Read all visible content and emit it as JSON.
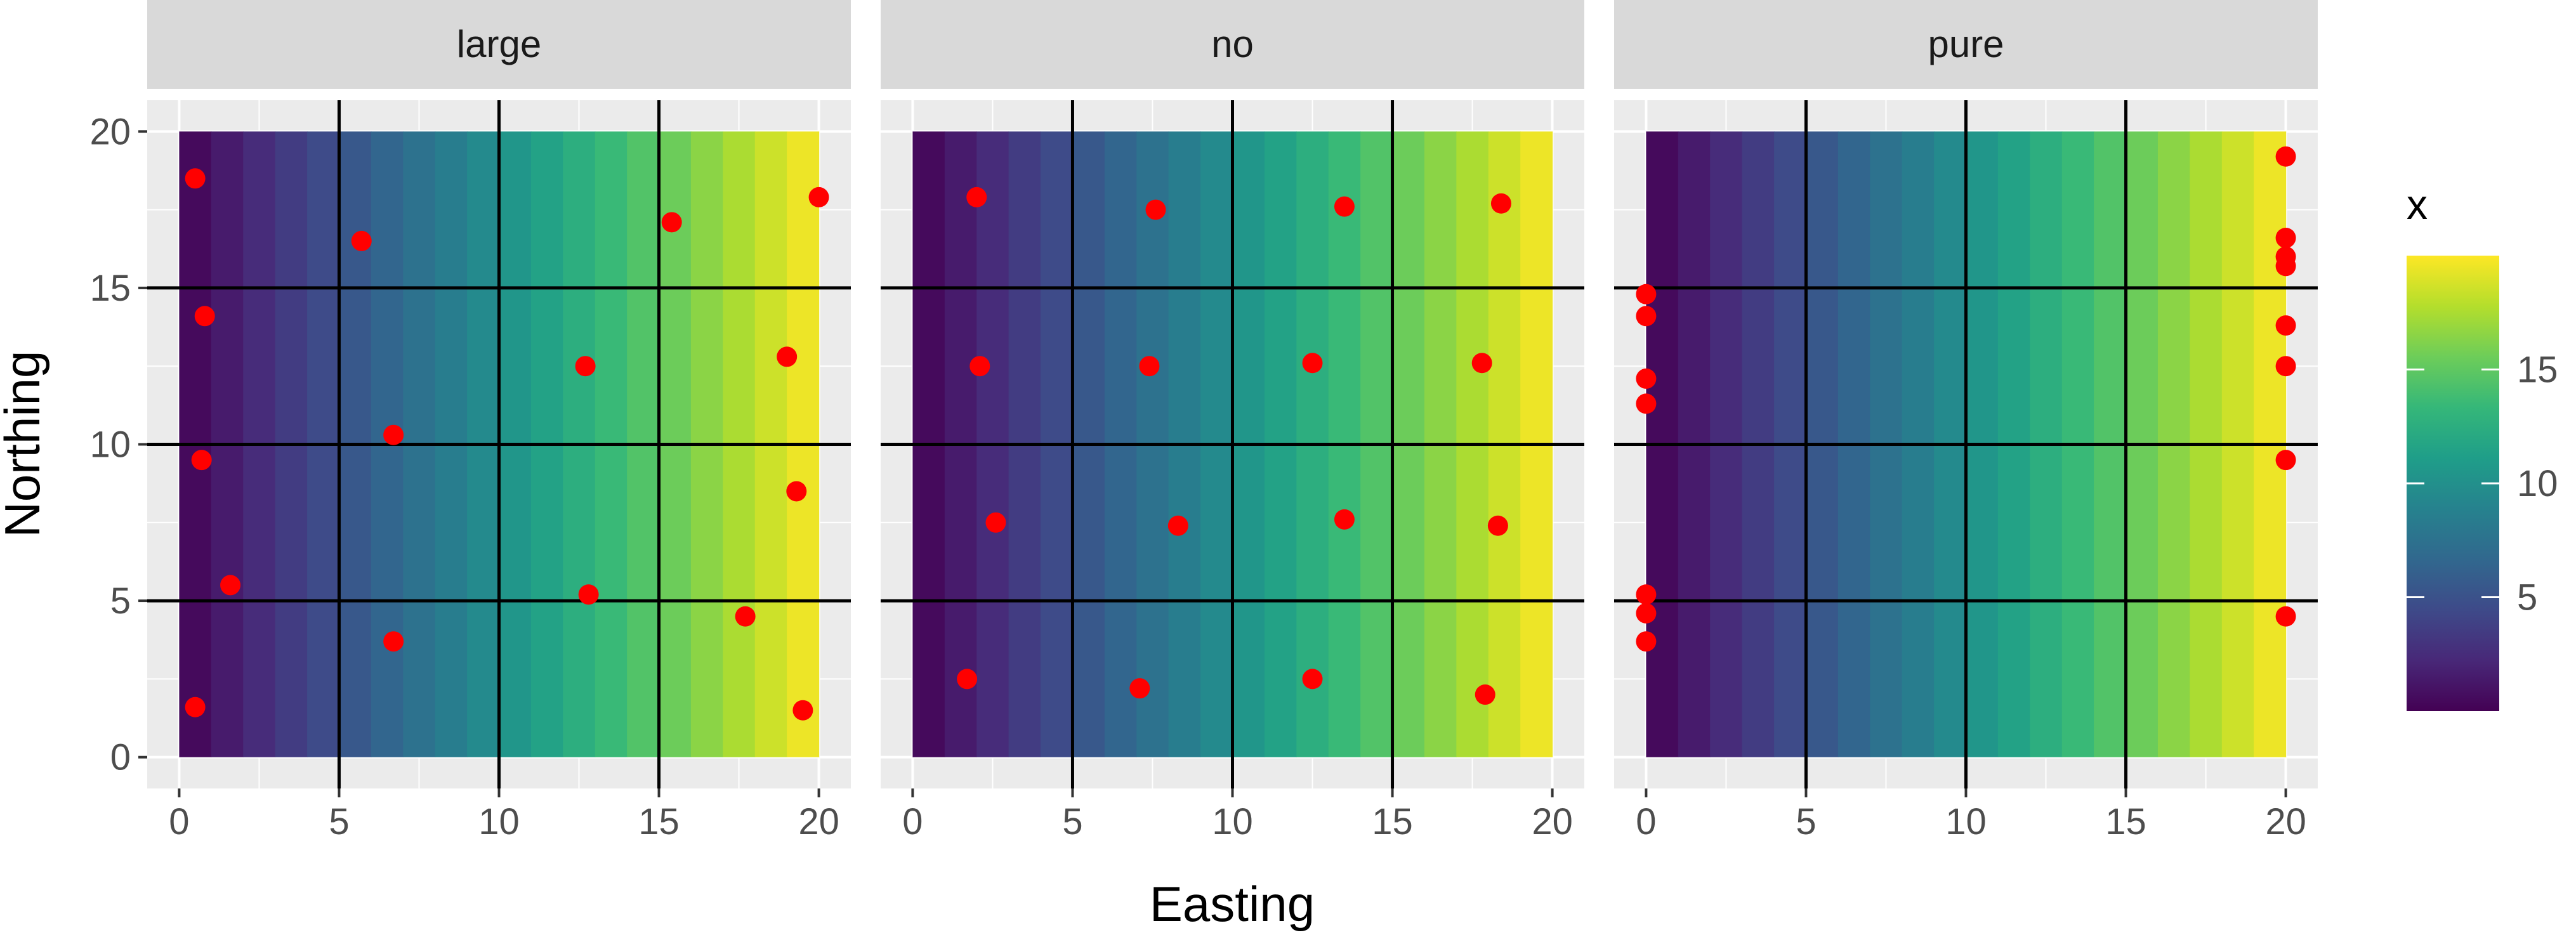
{
  "chart_data": {
    "type": "heatmap",
    "panels": [
      {
        "label": "large",
        "points": [
          [
            0.5,
            18.5
          ],
          [
            0.8,
            14.1
          ],
          [
            0.7,
            9.5
          ],
          [
            1.6,
            5.5
          ],
          [
            0.5,
            1.6
          ],
          [
            5.7,
            16.5
          ],
          [
            6.7,
            10.3
          ],
          [
            6.7,
            3.7
          ],
          [
            12.7,
            12.5
          ],
          [
            12.8,
            5.2
          ],
          [
            15.4,
            17.1
          ],
          [
            17.7,
            4.5
          ],
          [
            19.0,
            12.8
          ],
          [
            19.3,
            8.5
          ],
          [
            20.0,
            17.9
          ],
          [
            19.5,
            1.5
          ]
        ]
      },
      {
        "label": "no",
        "points": [
          [
            2.0,
            17.9
          ],
          [
            2.1,
            12.5
          ],
          [
            2.6,
            7.5
          ],
          [
            1.7,
            2.5
          ],
          [
            7.6,
            17.5
          ],
          [
            7.4,
            12.5
          ],
          [
            8.3,
            7.4
          ],
          [
            7.1,
            2.2
          ],
          [
            13.5,
            17.6
          ],
          [
            12.5,
            12.6
          ],
          [
            13.5,
            7.6
          ],
          [
            12.5,
            2.5
          ],
          [
            18.4,
            17.7
          ],
          [
            17.8,
            12.6
          ],
          [
            18.3,
            7.4
          ],
          [
            17.9,
            2.0
          ]
        ]
      },
      {
        "label": "pure",
        "points": [
          [
            0,
            14.8
          ],
          [
            0,
            14.1
          ],
          [
            0,
            12.1
          ],
          [
            0,
            11.3
          ],
          [
            0,
            5.2
          ],
          [
            0,
            4.6
          ],
          [
            0,
            3.7
          ],
          [
            20,
            19.2
          ],
          [
            20,
            16.6
          ],
          [
            20,
            16.0
          ],
          [
            20,
            15.7
          ],
          [
            20,
            13.8
          ],
          [
            20,
            12.5
          ],
          [
            20,
            9.5
          ],
          [
            20,
            4.5
          ]
        ]
      }
    ],
    "fill_variable": "x",
    "fill_gradient": "horizontal, increasing with Easting",
    "colorscale": "viridis",
    "color_range": [
      0,
      20
    ],
    "legend_ticks": [
      5,
      10,
      15
    ],
    "xlabel": "Easting",
    "ylabel": "Northing",
    "xlim": [
      0,
      20
    ],
    "ylim": [
      0,
      20
    ],
    "x_ticks": [
      0,
      5,
      10,
      15,
      20
    ],
    "y_ticks": [
      0,
      5,
      10,
      15,
      20
    ],
    "grid_lines": [
      5,
      10,
      15
    ],
    "legend_title": "x",
    "legend_position": "right",
    "point_color": "#ff0000",
    "grid_color": "#000000"
  }
}
